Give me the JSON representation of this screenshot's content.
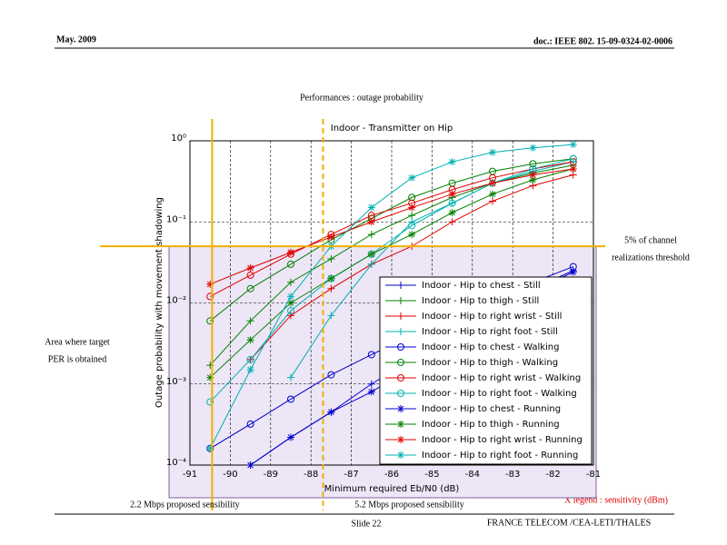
{
  "header": {
    "date": "May. 2009",
    "doc": "doc.: IEEE 802. 15-09-0324-02-0006"
  },
  "title": "Performances : outage probability",
  "footer": {
    "slide": "Slide 22",
    "org": "FRANCE TELECOM /CEA-LETI/THALES"
  },
  "notes": {
    "area": [
      "Area where target",
      "PER is obtained"
    ],
    "threshold": [
      "5% of channel",
      "realizations threshold"
    ],
    "legend_x": "X legend : sensitivity (dBm)"
  },
  "chart_data": {
    "type": "line",
    "title": "Indoor - Transmitter on Hip",
    "xlabel": "Minimum required Eb/N0 (dB)",
    "ylabel": "Outage probability with movement shadowing",
    "xlim": [
      -91,
      -81
    ],
    "xticks": [
      -91,
      -90,
      -89,
      -88,
      -87,
      -86,
      -85,
      -84,
      -83,
      -82,
      -81
    ],
    "ylim": [
      0.0001,
      1
    ],
    "log_y": true,
    "grid": true,
    "yticks": [
      {
        "value": 0.0001,
        "label": "10⁻⁴"
      },
      {
        "value": 0.001,
        "label": "10⁻³"
      },
      {
        "value": 0.01,
        "label": "10⁻²"
      },
      {
        "value": 0.1,
        "label": "10⁻¹"
      },
      {
        "value": 1,
        "label": "10⁰"
      }
    ],
    "threshold": {
      "value": 0.05,
      "color": "#f0b000"
    },
    "vlines": [
      {
        "x": -90.45,
        "label": "2.2 Mbps proposed sensibility",
        "dashed": false,
        "color": "#f0b000"
      },
      {
        "x": -87.7,
        "label": "5.2 Mbps proposed sensibility",
        "dashed": true,
        "color": "#f0b000"
      }
    ],
    "x": [
      -90.5,
      -89.5,
      -88.5,
      -87.5,
      -86.5,
      -85.5,
      -84.5,
      -83.5,
      -82.5,
      -81.5
    ],
    "series": [
      {
        "name": "Indoor - Hip to chest - Still",
        "color": "#0000cc",
        "marker": "+",
        "values": [
          null,
          0.0001,
          0.00022,
          0.00045,
          0.001,
          0.002,
          0.004,
          0.008,
          0.015,
          0.025
        ]
      },
      {
        "name": "Indoor - Hip to thigh - Still",
        "color": "#008000",
        "marker": "+",
        "values": [
          0.0017,
          0.006,
          0.018,
          0.035,
          0.07,
          0.12,
          0.2,
          0.3,
          0.4,
          0.5
        ]
      },
      {
        "name": "Indoor - Hip to right wrist - Still",
        "color": "#e00000",
        "marker": "+",
        "values": [
          null,
          0.002,
          0.007,
          0.015,
          0.03,
          0.05,
          0.1,
          0.18,
          0.28,
          0.38
        ]
      },
      {
        "name": "Indoor - Hip to right foot - Still",
        "color": "#00b0b0",
        "marker": "+",
        "values": [
          null,
          null,
          0.0012,
          0.007,
          0.03,
          0.1,
          0.17,
          0.3,
          0.42,
          0.55
        ]
      },
      {
        "name": "Indoor - Hip to chest - Walking",
        "color": "#0000cc",
        "marker": "o",
        "values": [
          0.00016,
          0.00032,
          0.00065,
          0.0013,
          0.0023,
          0.004,
          0.007,
          0.011,
          0.018,
          0.028
        ]
      },
      {
        "name": "Indoor - Hip to thigh - Walking",
        "color": "#008000",
        "marker": "o",
        "values": [
          0.006,
          0.015,
          0.03,
          0.06,
          0.11,
          0.2,
          0.3,
          0.42,
          0.52,
          0.6
        ]
      },
      {
        "name": "Indoor - Hip to right wrist - Walking",
        "color": "#e00000",
        "marker": "o",
        "values": [
          0.012,
          0.022,
          0.04,
          0.07,
          0.12,
          0.17,
          0.25,
          0.35,
          0.45,
          0.55
        ]
      },
      {
        "name": "Indoor - Hip to right foot - Walking",
        "color": "#00b0b0",
        "marker": "o",
        "values": [
          0.0006,
          0.002,
          0.008,
          0.02,
          0.04,
          0.09,
          0.17,
          0.3,
          0.45,
          0.6
        ]
      },
      {
        "name": "Indoor - Hip to chest - Running",
        "color": "#0000cc",
        "marker": "*",
        "values": [
          null,
          0.0001,
          0.00022,
          0.00045,
          0.0008,
          0.0016,
          0.0035,
          0.007,
          0.014,
          0.024
        ]
      },
      {
        "name": "Indoor - Hip to thigh - Running",
        "color": "#008000",
        "marker": "*",
        "values": [
          0.0012,
          0.0035,
          0.01,
          0.02,
          0.04,
          0.07,
          0.13,
          0.22,
          0.33,
          0.45
        ]
      },
      {
        "name": "Indoor - Hip to right wrist - Running",
        "color": "#e00000",
        "marker": "*",
        "values": [
          0.017,
          0.027,
          0.042,
          0.065,
          0.1,
          0.15,
          0.22,
          0.3,
          0.38,
          0.45
        ]
      },
      {
        "name": "Indoor - Hip to right foot - Running",
        "color": "#00b0b0",
        "marker": "*",
        "values": [
          0.00016,
          0.0015,
          0.012,
          0.05,
          0.15,
          0.35,
          0.55,
          0.72,
          0.82,
          0.9
        ]
      }
    ]
  }
}
